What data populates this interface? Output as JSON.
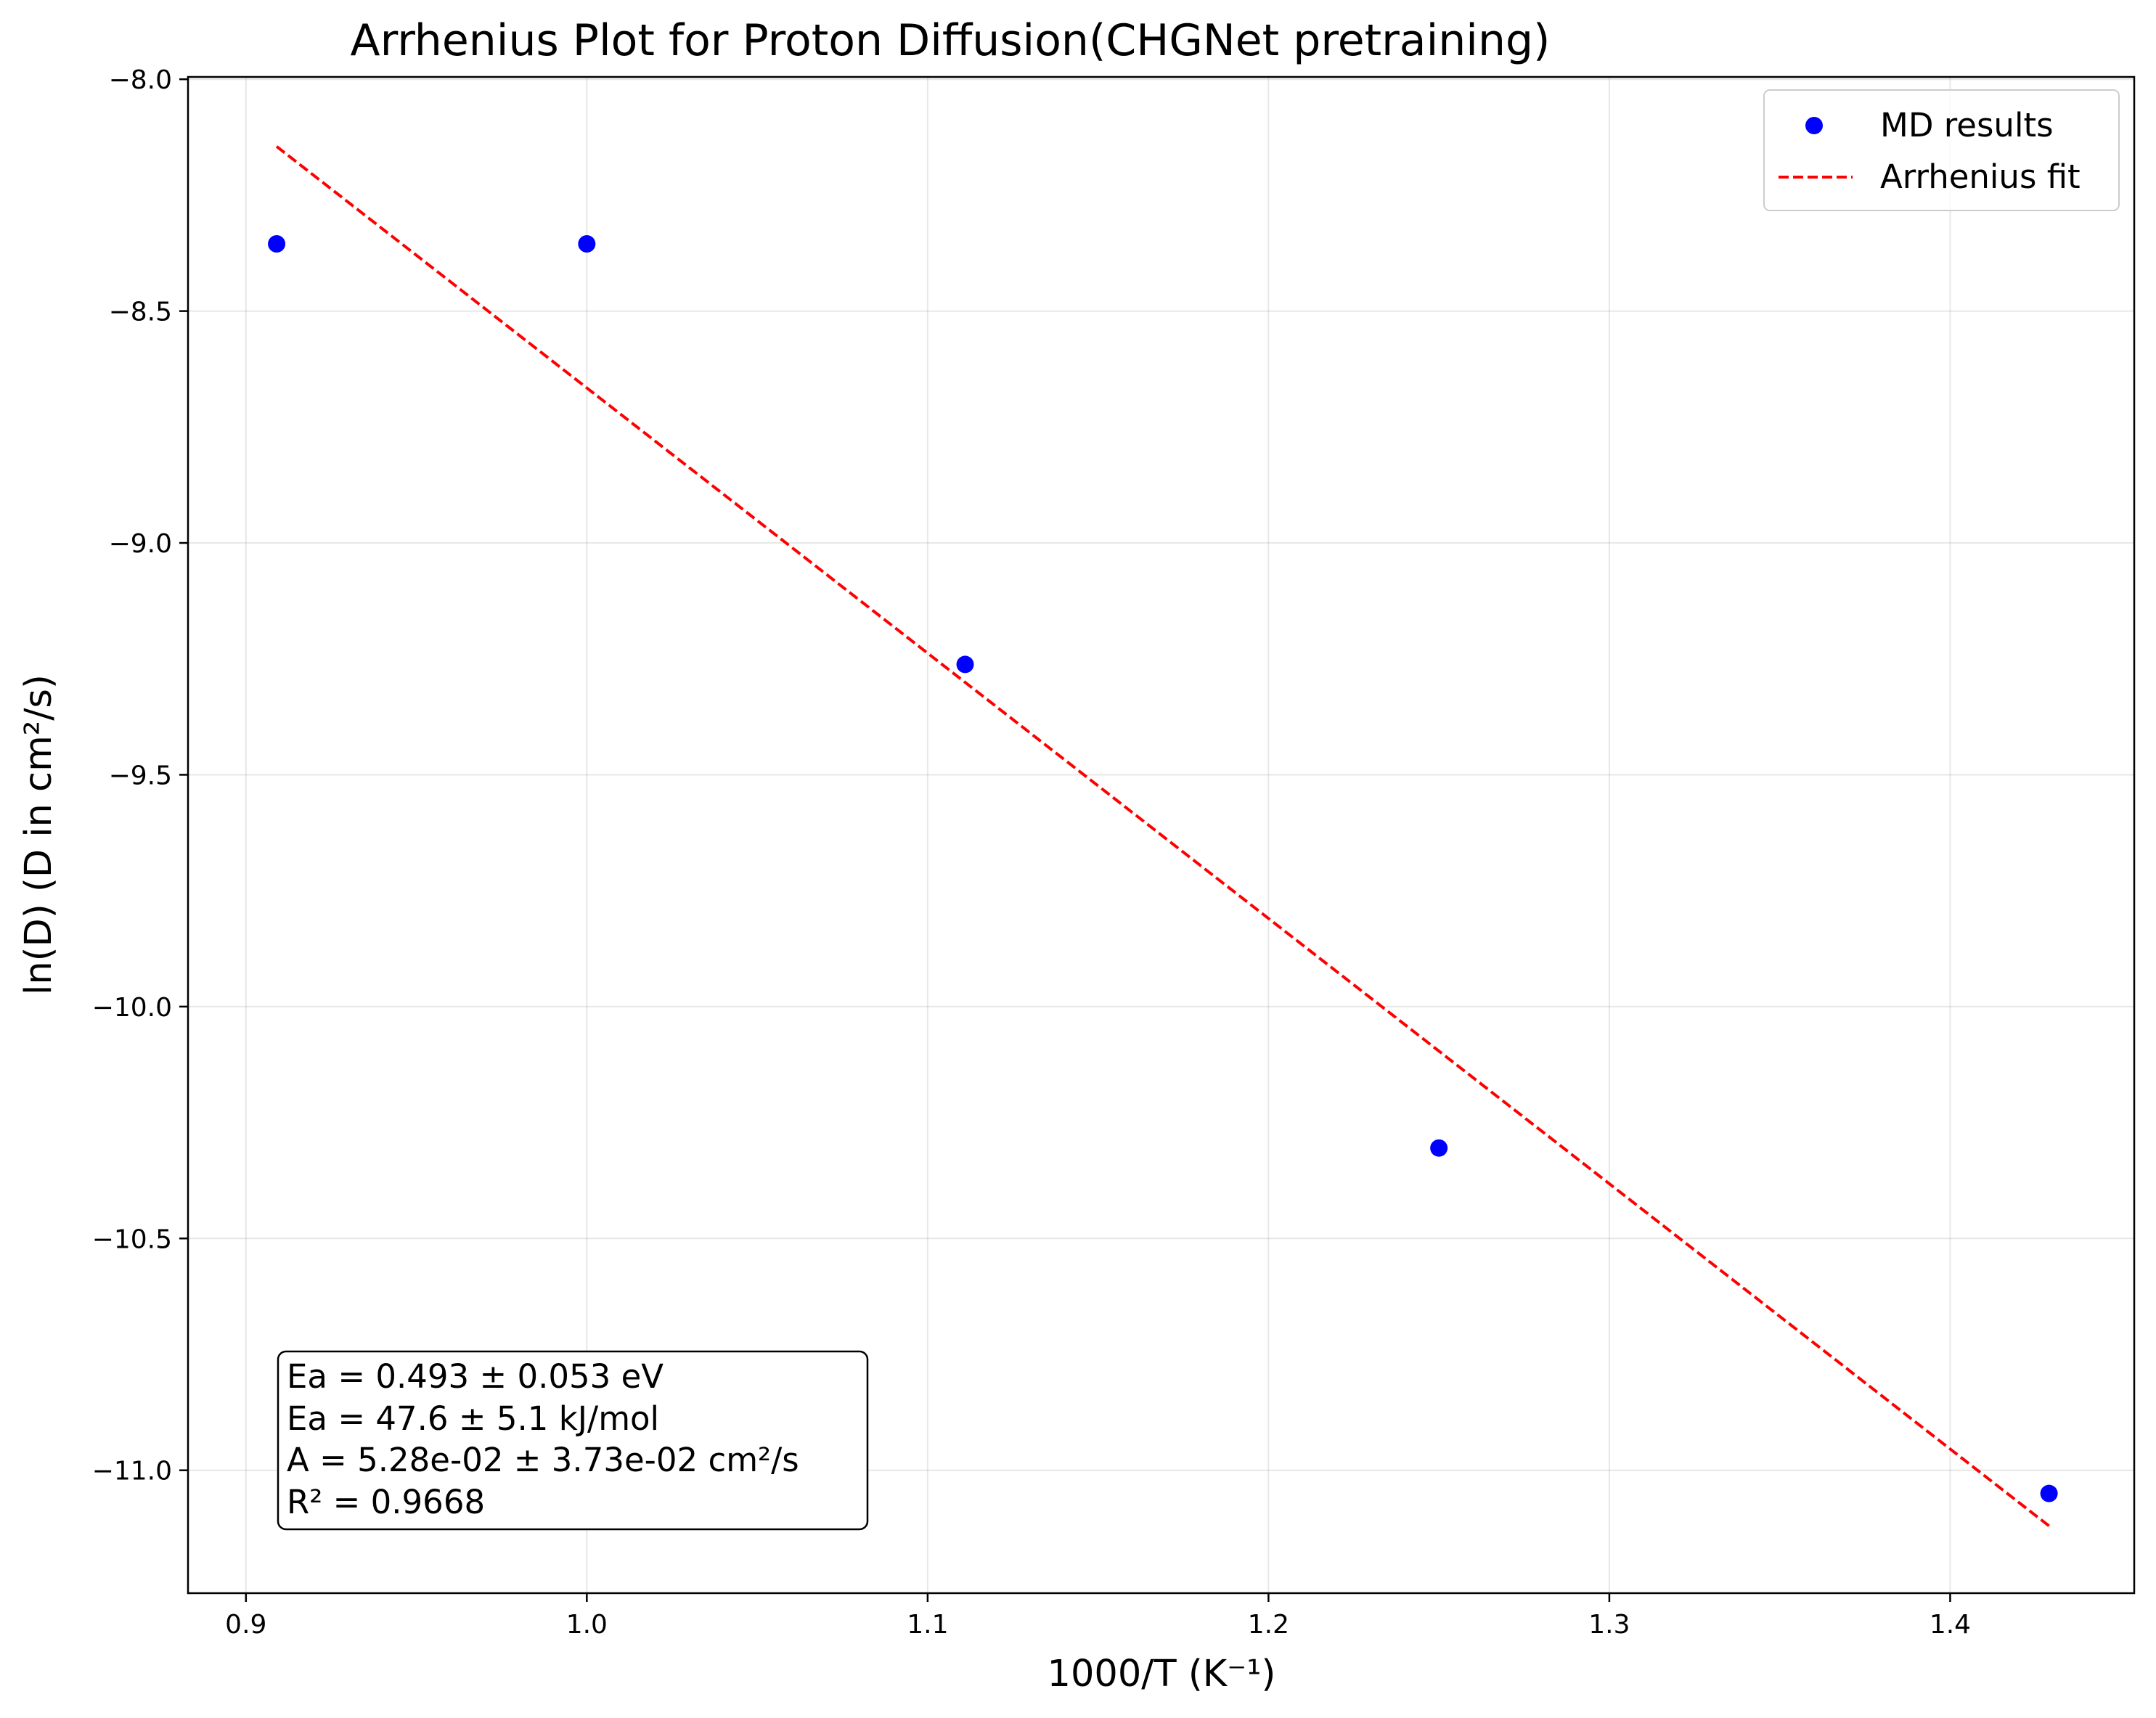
{
  "chart_data": {
    "type": "scatter",
    "title": "Arrhenius Plot for Proton Diffusion(CHGNet pretraining)",
    "xlabel": "1000/T (K⁻¹)",
    "ylabel": "ln(D) (D in cm²/s)",
    "xlim": [
      0.883,
      1.454
    ],
    "ylim": [
      -11.265,
      -7.995
    ],
    "xticks": [
      0.9,
      1.0,
      1.1,
      1.2,
      1.3,
      1.4
    ],
    "xtick_labels": [
      "0.9",
      "1.0",
      "1.1",
      "1.2",
      "1.3",
      "1.4"
    ],
    "yticks": [
      -8.0,
      -8.5,
      -9.0,
      -9.5,
      -10.0,
      -10.5,
      -11.0
    ],
    "ytick_labels": [
      "−8.0",
      "−8.5",
      "−9.0",
      "−9.5",
      "−10.0",
      "−10.5",
      "−11.0"
    ],
    "grid": true,
    "legend_position": "top-right",
    "series": [
      {
        "name": "MD results",
        "kind": "scatter",
        "color": "#0000ff",
        "x": [
          0.909,
          1.0,
          1.111,
          1.25,
          1.429
        ],
        "y": [
          -8.355,
          -8.355,
          -9.262,
          -10.305,
          -11.05
        ]
      },
      {
        "name": "Arrhenius fit",
        "kind": "line",
        "style": "dashed",
        "color": "#ff0000",
        "x": [
          0.909,
          1.429
        ],
        "y": [
          -8.145,
          -11.12
        ]
      }
    ],
    "annotations": {
      "lines": [
        "Ea = 0.493 ± 0.053 eV",
        "Ea = 47.6 ± 5.1 kJ/mol",
        "A = 5.28e-02 ± 3.73e-02 cm²/s",
        "R² = 0.9668"
      ]
    }
  }
}
